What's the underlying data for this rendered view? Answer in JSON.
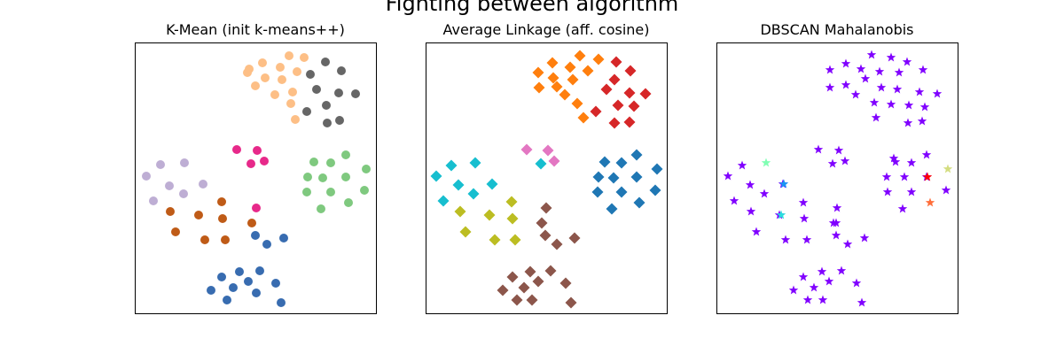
{
  "figure": {
    "title": "Fighting between algorithm"
  },
  "chart_data": [
    {
      "type": "scatter",
      "title": "K-Mean (init k-means++)",
      "marker": "circle",
      "xlim": [
        0,
        272
      ],
      "ylim": [
        0,
        306
      ],
      "xticks": [],
      "yticks": [],
      "grid": false,
      "series": [
        {
          "color": "#fdbf86",
          "points": [
            [
              128,
              29
            ],
            [
              143,
              22
            ],
            [
              163,
              27
            ],
            [
              173,
              14
            ],
            [
              190,
              16
            ],
            [
              126,
              33
            ],
            [
              146,
              39
            ],
            [
              165,
              41
            ],
            [
              182,
              32
            ],
            [
              135,
              48
            ],
            [
              157,
              58
            ],
            [
              177,
              55
            ],
            [
              175,
              68
            ],
            [
              180,
              86
            ]
          ]
        },
        {
          "color": "#666666",
          "points": [
            [
              197,
              35
            ],
            [
              214,
              21
            ],
            [
              232,
              31
            ],
            [
              204,
              52
            ],
            [
              229,
              56
            ],
            [
              248,
              57
            ],
            [
              215,
              70
            ],
            [
              193,
              77
            ],
            [
              230,
              87
            ],
            [
              216,
              90
            ]
          ]
        },
        {
          "color": "#e7298a",
          "points": [
            [
              114,
              120
            ],
            [
              137,
              121
            ],
            [
              145,
              133
            ],
            [
              130,
              136
            ],
            [
              136,
              186
            ]
          ]
        },
        {
          "color": "#7fc97f",
          "points": [
            [
              201,
              134
            ],
            [
              220,
              135
            ],
            [
              237,
              126
            ],
            [
              260,
              142
            ],
            [
              194,
              151
            ],
            [
              211,
              152
            ],
            [
              237,
              151
            ],
            [
              193,
              168
            ],
            [
              220,
              168
            ],
            [
              258,
              166
            ],
            [
              240,
              180
            ],
            [
              209,
              187
            ]
          ]
        },
        {
          "color": "#beaed4",
          "points": [
            [
              28,
              137
            ],
            [
              55,
              135
            ],
            [
              12,
              150
            ],
            [
              38,
              161
            ],
            [
              54,
              170
            ],
            [
              76,
              159
            ],
            [
              20,
              178
            ]
          ]
        },
        {
          "color": "#bf5b17",
          "points": [
            [
              97,
              179
            ],
            [
              39,
              190
            ],
            [
              71,
              194
            ],
            [
              98,
              198
            ],
            [
              131,
              203
            ],
            [
              45,
              213
            ],
            [
              78,
              222
            ],
            [
              101,
              222
            ]
          ]
        },
        {
          "color": "#386cb0",
          "points": [
            [
              135,
              217
            ],
            [
              167,
              220
            ],
            [
              148,
              227
            ],
            [
              117,
              258
            ],
            [
              140,
              257
            ],
            [
              97,
              264
            ],
            [
              110,
              276
            ],
            [
              127,
              269
            ],
            [
              158,
              271
            ],
            [
              85,
              279
            ],
            [
              103,
              290
            ],
            [
              136,
              282
            ],
            [
              164,
              293
            ]
          ]
        }
      ]
    },
    {
      "type": "scatter",
      "title": "Average Linkage (aff. cosine)",
      "marker": "diamond",
      "xlim": [
        0,
        272
      ],
      "ylim": [
        0,
        306
      ],
      "xticks": [],
      "yticks": [],
      "grid": false,
      "series": [
        {
          "color": "#ff7f0e",
          "points": [
            [
              126,
              33
            ],
            [
              142,
              22
            ],
            [
              162,
              27
            ],
            [
              173,
              14
            ],
            [
              194,
              18
            ],
            [
              143,
              39
            ],
            [
              165,
              41
            ],
            [
              182,
              31
            ],
            [
              156,
              58
            ],
            [
              127,
              50
            ],
            [
              147,
              49
            ],
            [
              170,
              68
            ],
            [
              177,
              84
            ]
          ]
        },
        {
          "color": "#d62728",
          "points": [
            [
              214,
              21
            ],
            [
              230,
              31
            ],
            [
              212,
              41
            ],
            [
              203,
              52
            ],
            [
              229,
              56
            ],
            [
              247,
              57
            ],
            [
              216,
              70
            ],
            [
              191,
              77
            ],
            [
              234,
              71
            ],
            [
              212,
              90
            ],
            [
              229,
              89
            ]
          ]
        },
        {
          "color": "#e377c2",
          "points": [
            [
              113,
              120
            ],
            [
              137,
              121
            ],
            [
              144,
              133
            ]
          ]
        },
        {
          "color": "#17becf",
          "points": [
            [
              129,
              136
            ],
            [
              28,
              138
            ],
            [
              55,
              135
            ],
            [
              11,
              150
            ],
            [
              36,
              160
            ],
            [
              53,
              170
            ],
            [
              74,
              159
            ],
            [
              19,
              178
            ]
          ]
        },
        {
          "color": "#bcbd22",
          "points": [
            [
              96,
              179
            ],
            [
              38,
              190
            ],
            [
              71,
              194
            ],
            [
              97,
              198
            ],
            [
              44,
              213
            ],
            [
              77,
              222
            ],
            [
              100,
              222
            ]
          ]
        },
        {
          "color": "#8c564b",
          "points": [
            [
              135,
              186
            ],
            [
              130,
              203
            ],
            [
              134,
              217
            ],
            [
              147,
              227
            ],
            [
              167,
              220
            ],
            [
              117,
              258
            ],
            [
              140,
              257
            ],
            [
              97,
              264
            ],
            [
              110,
              276
            ],
            [
              126,
              269
            ],
            [
              157,
              271
            ],
            [
              86,
              279
            ],
            [
              102,
              290
            ],
            [
              119,
              290
            ],
            [
              163,
              293
            ]
          ]
        },
        {
          "color": "#1f77b4",
          "points": [
            [
              201,
              134
            ],
            [
              220,
              135
            ],
            [
              237,
              126
            ],
            [
              260,
              142
            ],
            [
              194,
              151
            ],
            [
              211,
              152
            ],
            [
              237,
              151
            ],
            [
              193,
              168
            ],
            [
              220,
              168
            ],
            [
              258,
              166
            ],
            [
              240,
              180
            ],
            [
              209,
              187
            ]
          ]
        }
      ]
    },
    {
      "type": "scatter",
      "title": "DBSCAN Mahalanobis",
      "marker": "star",
      "xlim": [
        0,
        272
      ],
      "ylim": [
        0,
        306
      ],
      "xticks": [],
      "yticks": [],
      "grid": false,
      "series": [
        {
          "color": "#8000ff",
          "points": [
            [
              127,
              30
            ],
            [
              145,
              23
            ],
            [
              162,
              29
            ],
            [
              174,
              13
            ],
            [
              196,
              16
            ],
            [
              214,
              21
            ],
            [
              232,
              30
            ],
            [
              127,
              50
            ],
            [
              145,
              47
            ],
            [
              167,
              40
            ],
            [
              183,
              32
            ],
            [
              205,
              33
            ],
            [
              156,
              58
            ],
            [
              185,
              50
            ],
            [
              203,
              52
            ],
            [
              228,
              55
            ],
            [
              248,
              57
            ],
            [
              177,
              67
            ],
            [
              196,
              69
            ],
            [
              216,
              70
            ],
            [
              234,
              72
            ],
            [
              215,
              90
            ],
            [
              231,
              88
            ],
            [
              179,
              84
            ],
            [
              114,
              120
            ],
            [
              137,
              121
            ],
            [
              130,
              136
            ],
            [
              144,
              133
            ],
            [
              201,
              134
            ],
            [
              219,
              135
            ],
            [
              236,
              126
            ],
            [
              191,
              151
            ],
            [
              211,
              151
            ],
            [
              236,
              151
            ],
            [
              258,
              166
            ],
            [
              192,
              168
            ],
            [
              219,
              168
            ],
            [
              209,
              187
            ],
            [
              28,
              138
            ],
            [
              12,
              150
            ],
            [
              37,
              160
            ],
            [
              53,
              170
            ],
            [
              74,
              159
            ],
            [
              19,
              178
            ],
            [
              38,
              190
            ],
            [
              70,
              194
            ],
            [
              98,
              198
            ],
            [
              134,
              203
            ],
            [
              44,
              213
            ],
            [
              77,
              222
            ],
            [
              101,
              222
            ],
            [
              135,
              186
            ],
            [
              97,
              180
            ],
            [
              131,
              203
            ],
            [
              134,
              217
            ],
            [
              147,
              227
            ],
            [
              166,
              220
            ],
            [
              118,
              258
            ],
            [
              140,
              257
            ],
            [
              97,
              264
            ],
            [
              109,
              276
            ],
            [
              126,
              269
            ],
            [
              157,
              271
            ],
            [
              86,
              279
            ],
            [
              102,
              290
            ],
            [
              119,
              290
            ],
            [
              163,
              293
            ],
            [
              199,
              130
            ]
          ]
        },
        {
          "color": "#80ffb4",
          "points": [
            [
              55,
              135
            ]
          ]
        },
        {
          "color": "#1996f3",
          "points": [
            [
              75,
              159
            ]
          ]
        },
        {
          "color": "#2adddd",
          "points": [
            [
              72,
              194
            ]
          ]
        },
        {
          "color": "#d4dd80",
          "points": [
            [
              260,
              142
            ]
          ]
        },
        {
          "color": "#ff0000",
          "points": [
            [
              237,
              151
            ]
          ]
        },
        {
          "color": "#ff6e3a",
          "points": [
            [
              240,
              180
            ]
          ]
        }
      ]
    }
  ]
}
